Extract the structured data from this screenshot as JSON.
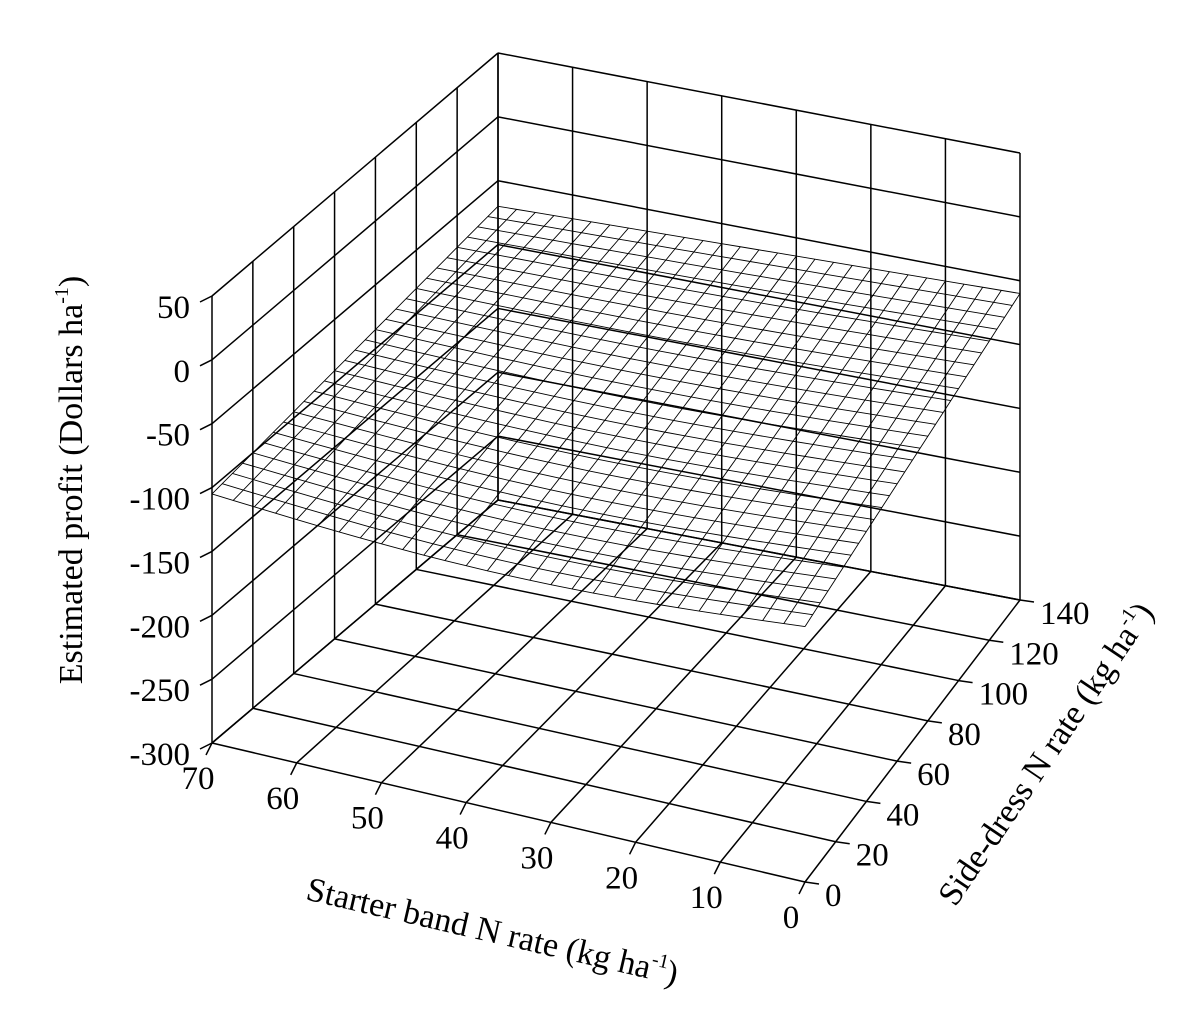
{
  "chart_data": {
    "type": "surface",
    "ylabel": {
      "main": "Estimated profit (Dollars ha",
      "sup": "-1",
      "end": ")"
    },
    "xlabel": {
      "main": "Starter band N rate (kg ha",
      "sup": "-1",
      "end": ")"
    },
    "zlabel": {
      "main": "Side-dress N rate (kg ha",
      "sup": "-1",
      "end": ")"
    },
    "y_ticks": [
      "50",
      "0",
      "-50",
      "-100",
      "-150",
      "-200",
      "-250",
      "-300"
    ],
    "x_ticks": [
      "70",
      "60",
      "50",
      "40",
      "30",
      "20",
      "10",
      "0"
    ],
    "z_ticks": [
      "0",
      "20",
      "40",
      "60",
      "80",
      "100",
      "120",
      "140"
    ],
    "starter_range": [
      0,
      70
    ],
    "sidedress_range": [
      0,
      140
    ],
    "profit_range": [
      -300,
      50
    ],
    "grid": true,
    "surface_corners": [
      {
        "starter": 70,
        "sidedress": 0,
        "profit": -105
      },
      {
        "starter": 0,
        "sidedress": 0,
        "profit": -100
      },
      {
        "starter": 70,
        "sidedress": 140,
        "profit": -70
      },
      {
        "starter": 0,
        "sidedress": 140,
        "profit": -60
      }
    ]
  }
}
